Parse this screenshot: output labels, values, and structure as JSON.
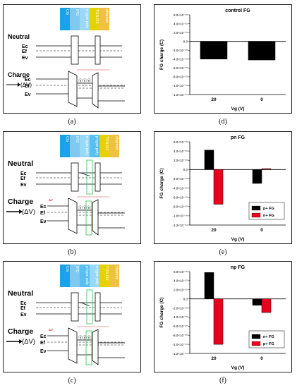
{
  "captions": [
    "(a)",
    "(b)",
    "(c)",
    "(d)",
    "(e)",
    "(f)"
  ],
  "bands": {
    "neutral": "Neutral",
    "charge": "Charge",
    "dv": "(ΔV)",
    "ec": "Ec",
    "ef": "Ef",
    "ev": "Ev",
    "dv_small": "ΔV",
    "electrons": "ⓔⓔⓔ"
  },
  "layers": {
    "a": [
      "CG",
      "IPD",
      "n-type poly",
      "TUN.OX",
      "channel"
    ],
    "b": [
      "CG",
      "IPD",
      "n-type poly",
      "p-type poly",
      "TUN.OX",
      "channel"
    ],
    "c": [
      "CG",
      "IPD",
      "p-type poly",
      "n-type poly",
      "TUN.OX",
      "channel"
    ]
  },
  "colors": {
    "cg": "#1aa3e8",
    "ipd": "#7fc8f0",
    "ntype": "#9ad8f8",
    "ptype": "#58bff2",
    "tunox": "#e6d200",
    "channel": "#f0c040",
    "p_bar": "#000000",
    "n_bar": "#e8001c",
    "green": "#2ec24a"
  },
  "ytick_labels": [
    "6.0×10⁻¹⁵",
    "4.0×10⁻¹⁵",
    "2.0×10⁻¹⁵",
    "0.0",
    "-2.0×10⁻¹⁵",
    "-4.0×10⁻¹⁵",
    "-6.0×10⁻¹⁵",
    "-8.0×10⁻¹⁵",
    "-1.0×10⁻¹⁴",
    "-1.2×10⁻¹⁴"
  ],
  "chart_data": [
    {
      "type": "bar",
      "title": "control FG",
      "xlabel": "Vg (V)",
      "ylabel": "FG charge (C)",
      "categories": [
        "20",
        "0"
      ],
      "ylim": [
        -1.2e-14,
        6e-15
      ],
      "series": [
        {
          "values": [
            -4e-15,
            -4.2e-15
          ]
        }
      ]
    },
    {
      "type": "bar",
      "title": "pn FG",
      "xlabel": "Vg (V)",
      "ylabel": "FG charge (C)",
      "categories": [
        "20",
        "0"
      ],
      "ylim": [
        -1.2e-14,
        6e-15
      ],
      "legend": "bottom-right",
      "series": [
        {
          "name": "p+ FG",
          "values": [
            4.2e-15,
            -3e-15
          ]
        },
        {
          "name": "n+ FG",
          "values": [
            -7.5e-15,
            2e-16
          ]
        }
      ]
    },
    {
      "type": "bar",
      "title": "np FG",
      "xlabel": "Vg (V)",
      "ylabel": "FG charge (C)",
      "categories": [
        "20",
        "0"
      ],
      "ylim": [
        -1.2e-14,
        6e-15
      ],
      "legend": "bottom-right",
      "series": [
        {
          "name": "n+ FG",
          "values": [
            5.8e-15,
            -1.4e-15
          ]
        },
        {
          "name": "p+ FG",
          "values": [
            -1e-14,
            -3e-15
          ]
        }
      ]
    }
  ]
}
